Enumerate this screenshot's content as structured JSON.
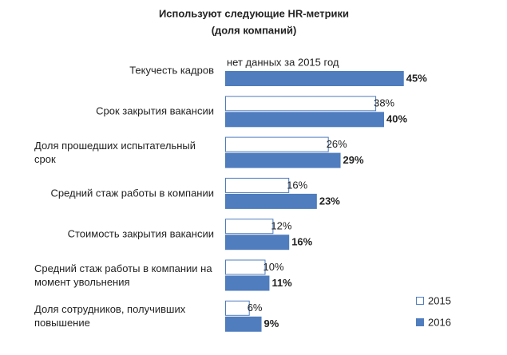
{
  "chart_data": {
    "type": "bar",
    "orientation": "horizontal",
    "title": "Используют следующие HR-метрики",
    "subtitle": "(доля компаний)",
    "annotation": "нет данных за 2015 год",
    "categories": [
      "Текучесть кадров",
      "Срок закрытия вакансии",
      "Доля прошедших испытательный срок",
      "Средний стаж работы в компании",
      "Стоимость закрытия вакансии",
      "Средний стаж работы в компании на момент увольнения",
      "Доля сотрудников, получивших повышение"
    ],
    "series": [
      {
        "name": "2015",
        "color": "#ffffff",
        "edgecolor": "#4f7dbe",
        "values": [
          null,
          38,
          26,
          16,
          12,
          10,
          6
        ],
        "value_labels": [
          null,
          "38%",
          "26%",
          "16%",
          "12%",
          "10%",
          "6%"
        ]
      },
      {
        "name": "2016",
        "color": "#4f7dbe",
        "edgecolor": "#4f7dbe",
        "values": [
          45,
          40,
          29,
          23,
          16,
          11,
          9
        ],
        "value_labels": [
          "45%",
          "40%",
          "29%",
          "23%",
          "16%",
          "11%",
          "9%"
        ]
      }
    ],
    "legend": "lower right"
  }
}
